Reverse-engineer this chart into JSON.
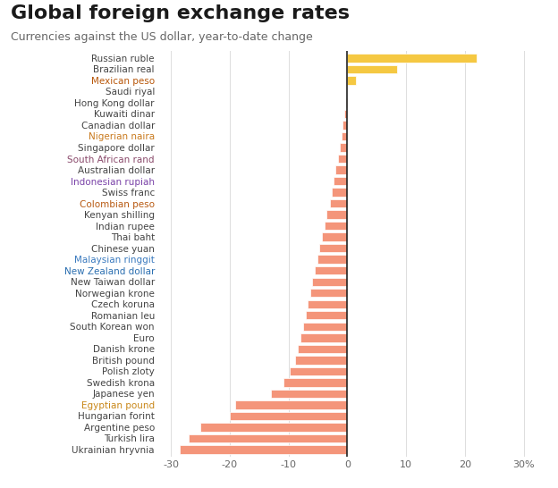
{
  "title": "Global foreign exchange rates",
  "subtitle": "Currencies against the US dollar, year-to-date change",
  "currencies": [
    "Russian ruble",
    "Brazilian real",
    "Mexican peso",
    "Saudi riyal",
    "Hong Kong dollar",
    "Kuwaiti dinar",
    "Canadian dollar",
    "Nigerian naira",
    "Singapore dollar",
    "South African rand",
    "Australian dollar",
    "Indonesian rupiah",
    "Swiss franc",
    "Colombian peso",
    "Kenyan shilling",
    "Indian rupee",
    "Thai baht",
    "Chinese yuan",
    "Malaysian ringgit",
    "New Zealand dollar",
    "New Taiwan dollar",
    "Norwegian krone",
    "Czech koruna",
    "Romanian leu",
    "South Korean won",
    "Euro",
    "Danish krone",
    "British pound",
    "Polish zloty",
    "Swedish krona",
    "Japanese yen",
    "Egyptian pound",
    "Hungarian forint",
    "Argentine peso",
    "Turkish lira",
    "Ukrainian hryvnia"
  ],
  "label_colors": [
    "#444444",
    "#444444",
    "#b8570a",
    "#444444",
    "#444444",
    "#444444",
    "#444444",
    "#c97a1e",
    "#444444",
    "#8a4a6b",
    "#444444",
    "#7a43a8",
    "#444444",
    "#b85a12",
    "#444444",
    "#444444",
    "#444444",
    "#444444",
    "#3a7abf",
    "#2a6eb0",
    "#444444",
    "#444444",
    "#444444",
    "#444444",
    "#444444",
    "#444444",
    "#444444",
    "#444444",
    "#444444",
    "#444444",
    "#444444",
    "#c9881a",
    "#444444",
    "#444444",
    "#444444",
    "#444444"
  ],
  "values": [
    22.0,
    8.5,
    1.5,
    -0.05,
    -0.2,
    -0.5,
    -0.8,
    -1.0,
    -1.3,
    -1.6,
    -2.0,
    -2.3,
    -2.6,
    -3.0,
    -3.5,
    -3.9,
    -4.3,
    -4.7,
    -5.1,
    -5.5,
    -5.9,
    -6.3,
    -6.7,
    -7.1,
    -7.5,
    -8.0,
    -8.4,
    -8.8,
    -9.8,
    -10.8,
    -13.0,
    -19.0,
    -20.0,
    -25.0,
    -27.0,
    -28.5
  ],
  "positive_color": "#f5c842",
  "negative_color": "#f4957a",
  "background_color": "#ffffff",
  "title_color": "#1a1a1a",
  "subtitle_color": "#666666",
  "default_label_color": "#444444",
  "xlim": [
    -32,
    33
  ],
  "xticks": [
    -30,
    -20,
    -10,
    0,
    10,
    20,
    30
  ],
  "xtick_labels": [
    "-30",
    "-20",
    "-10",
    "0",
    "10",
    "20",
    "30%"
  ],
  "bar_height": 0.75,
  "title_fontsize": 16,
  "subtitle_fontsize": 9,
  "label_fontsize": 7.5,
  "xtick_fontsize": 8
}
